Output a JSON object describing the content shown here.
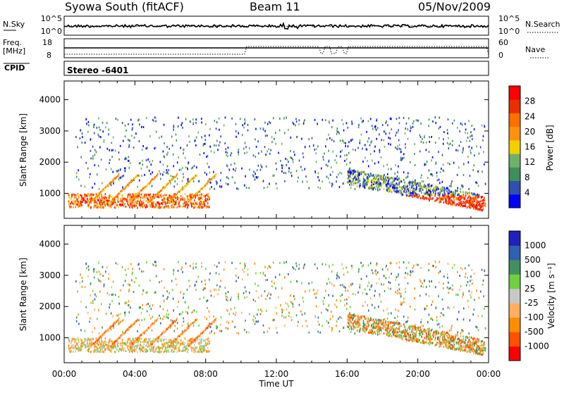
{
  "header": {
    "station": "Syowa South (fitACF)",
    "beam": "Beam 11",
    "date": "05/Nov/2009"
  },
  "panels": {
    "noise": {
      "left_label": "N.Sky",
      "left_ticks": [
        "10^5",
        "10^0"
      ],
      "right_label": "N.Search",
      "right_ticks": [
        "10^5",
        "10^0"
      ]
    },
    "freq": {
      "left_label_1": "Freq.",
      "left_label_2": "[MHz]",
      "left_ticks": [
        "18",
        "8"
      ],
      "right_label": "Nave",
      "right_ticks": [
        "60",
        "0"
      ]
    },
    "cpid": {
      "label": "CPID",
      "text": "Stereo -6401"
    }
  },
  "colors": {
    "power_scale": [
      "#0000ff",
      "#3050b0",
      "#3f8f5a",
      "#6fb06a",
      "#f0d000",
      "#ff9010",
      "#ff7000",
      "#e83000",
      "#ff0000"
    ],
    "velocity_scale": [
      "#ff0000",
      "#ff5000",
      "#ff8c00",
      "#ffb060",
      "#c8c8c8",
      "#70d040",
      "#409060",
      "#3060b0",
      "#2020c0"
    ]
  },
  "chart_data": [
    {
      "type": "heatmap",
      "name_label": "power",
      "ylabel": "Slant Range [km]",
      "yticks": [
        "1000",
        "2000",
        "3000",
        "4000"
      ],
      "ylim": [
        200,
        4600
      ],
      "xlim": [
        0,
        24
      ],
      "xticks": [
        "00:00",
        "04:00",
        "08:00",
        "12:00",
        "16:00",
        "20:00",
        "00:00"
      ],
      "colorbar": {
        "label": "Power [dB]",
        "ticks": [
          "4",
          "8",
          "12",
          "16",
          "20",
          "24",
          "28"
        ]
      }
    },
    {
      "type": "heatmap",
      "name_label": "velocity",
      "ylabel": "Slant Range [km]",
      "yticks": [
        "1000",
        "2000",
        "3000",
        "4000"
      ],
      "ylim": [
        200,
        4600
      ],
      "xlim": [
        0,
        24
      ],
      "xticks": [
        "00:00",
        "04:00",
        "08:00",
        "12:00",
        "16:00",
        "20:00",
        "00:00"
      ],
      "xlabel": "Time UT",
      "colorbar": {
        "label": "Velocity [m s⁻¹]",
        "ticks": [
          "1000",
          "500",
          "100",
          "25",
          "-25",
          "-100",
          "-500",
          "-1000"
        ]
      }
    }
  ]
}
